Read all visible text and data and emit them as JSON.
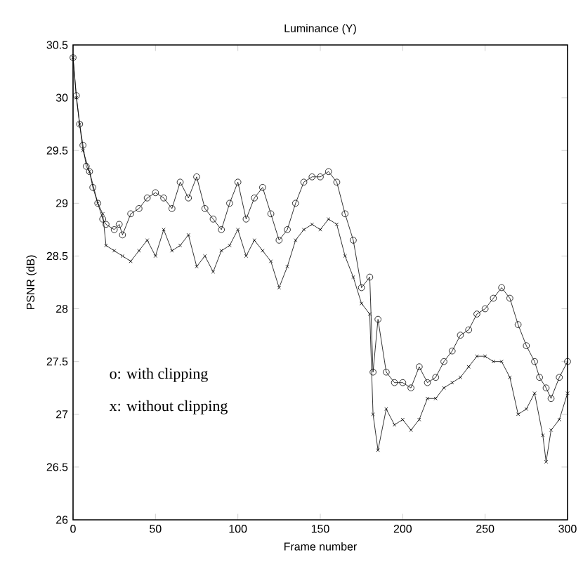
{
  "chart_data": {
    "type": "line",
    "title": "Luminance (Y)",
    "xlabel": "Frame number",
    "ylabel": "PSNR (dB)",
    "xlim": [
      0,
      300
    ],
    "ylim": [
      26,
      30.5
    ],
    "xticks": [
      0,
      50,
      100,
      150,
      200,
      250,
      300
    ],
    "yticks": [
      26,
      26.5,
      27,
      27.5,
      28,
      28.5,
      29,
      29.5,
      30,
      30.5
    ],
    "grid": false,
    "annotations": [
      "o: with clipping",
      "x: without clipping"
    ],
    "series": [
      {
        "color": "#000000",
        "marker": "circle",
        "x": [
          0,
          2,
          4,
          6,
          8,
          10,
          12,
          15,
          18,
          20,
          25,
          28,
          30,
          35,
          40,
          45,
          50,
          55,
          60,
          65,
          70,
          75,
          80,
          85,
          90,
          95,
          100,
          105,
          110,
          115,
          120,
          125,
          130,
          135,
          140,
          145,
          150,
          155,
          160,
          165,
          170,
          175,
          180,
          182,
          185,
          190,
          195,
          200,
          205,
          210,
          215,
          220,
          225,
          230,
          235,
          240,
          245,
          250,
          255,
          260,
          265,
          270,
          275,
          280,
          283,
          287,
          290,
          295,
          300
        ],
        "values": [
          30.38,
          30.02,
          29.75,
          29.55,
          29.35,
          29.3,
          29.15,
          29.0,
          28.85,
          28.8,
          28.75,
          28.8,
          28.7,
          28.9,
          28.95,
          29.05,
          29.1,
          29.05,
          28.95,
          29.2,
          29.05,
          29.25,
          28.95,
          28.85,
          28.75,
          29.0,
          29.2,
          28.85,
          29.05,
          29.15,
          28.9,
          28.65,
          28.75,
          29.0,
          29.2,
          29.25,
          29.25,
          29.3,
          29.2,
          28.9,
          28.65,
          28.2,
          28.3,
          27.4,
          27.9,
          27.4,
          27.3,
          27.3,
          27.25,
          27.45,
          27.3,
          27.35,
          27.5,
          27.6,
          27.75,
          27.8,
          27.95,
          28.0,
          28.1,
          28.2,
          28.1,
          27.85,
          27.65,
          27.5,
          27.35,
          27.25,
          27.15,
          27.35,
          27.5
        ]
      },
      {
        "color": "#000000",
        "marker": "cross",
        "x": [
          0,
          2,
          4,
          6,
          10,
          15,
          18,
          20,
          25,
          30,
          35,
          40,
          45,
          50,
          55,
          60,
          65,
          70,
          75,
          80,
          85,
          90,
          95,
          100,
          105,
          110,
          115,
          120,
          125,
          130,
          135,
          140,
          145,
          150,
          155,
          160,
          165,
          170,
          175,
          180,
          182,
          185,
          190,
          195,
          200,
          205,
          210,
          215,
          220,
          225,
          230,
          235,
          240,
          245,
          250,
          255,
          260,
          265,
          270,
          275,
          280,
          285,
          287,
          290,
          295,
          300
        ],
        "values": [
          30.38,
          30.0,
          29.75,
          29.5,
          29.3,
          29.0,
          28.9,
          28.6,
          28.55,
          28.5,
          28.45,
          28.55,
          28.65,
          28.5,
          28.75,
          28.55,
          28.6,
          28.7,
          28.4,
          28.5,
          28.35,
          28.55,
          28.6,
          28.75,
          28.5,
          28.65,
          28.55,
          28.45,
          28.2,
          28.4,
          28.65,
          28.75,
          28.8,
          28.75,
          28.85,
          28.8,
          28.5,
          28.3,
          28.05,
          27.95,
          27.0,
          26.66,
          27.05,
          26.9,
          26.95,
          26.85,
          26.95,
          27.15,
          27.15,
          27.25,
          27.3,
          27.35,
          27.45,
          27.55,
          27.55,
          27.5,
          27.5,
          27.35,
          27.0,
          27.05,
          27.2,
          26.8,
          26.55,
          26.85,
          26.95,
          27.2
        ]
      }
    ]
  }
}
